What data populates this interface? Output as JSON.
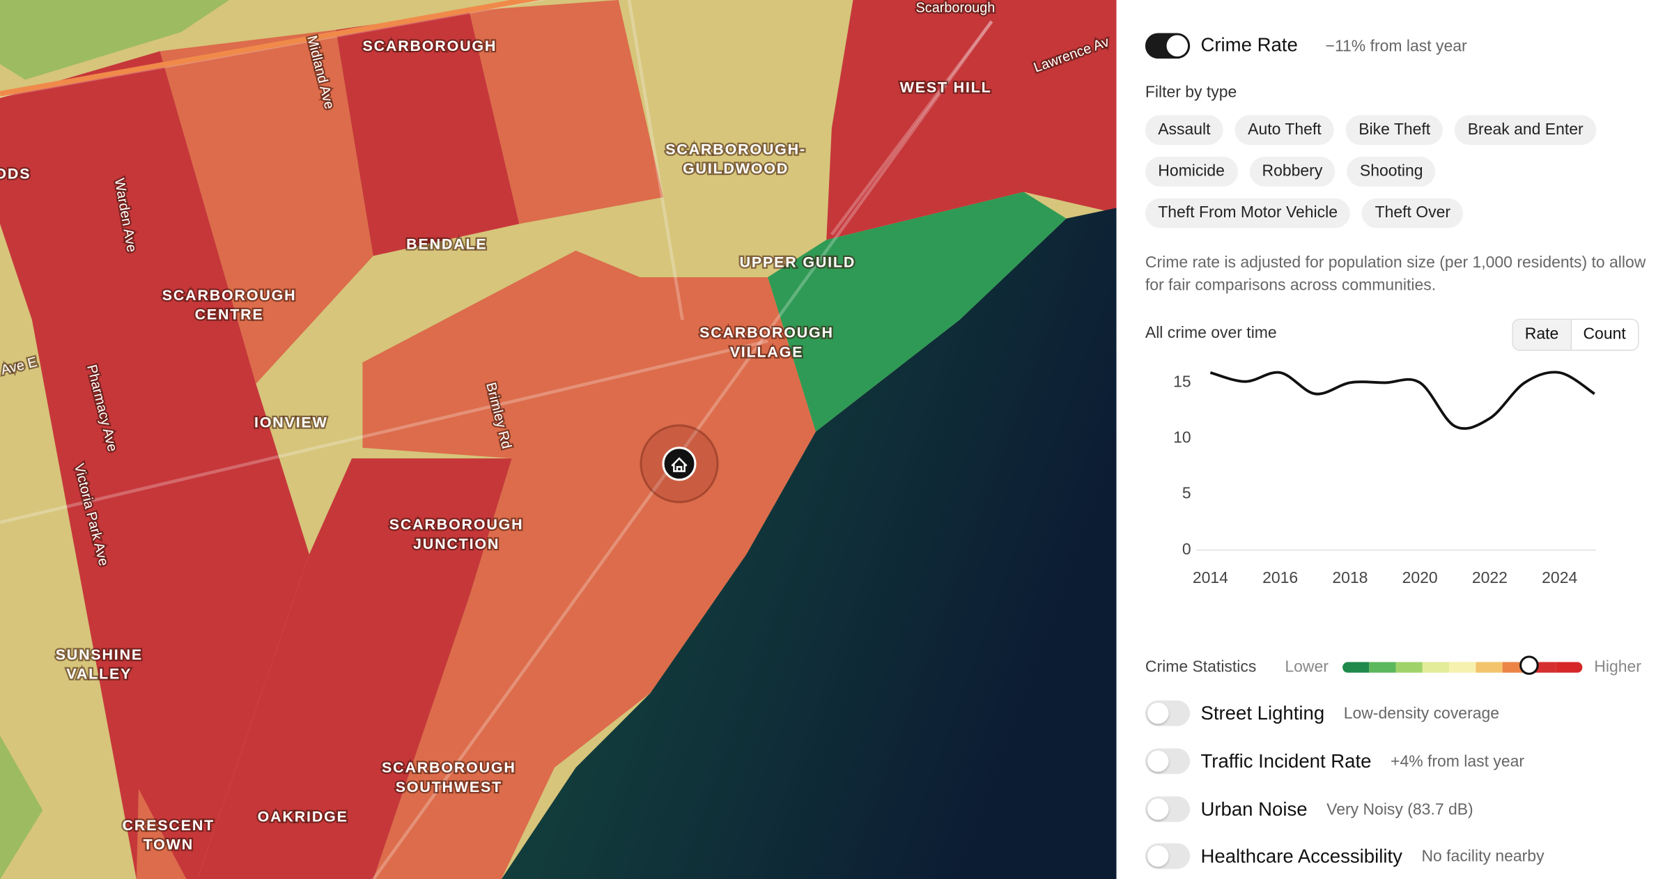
{
  "map": {
    "area_labels": [
      [
        "SCARBOROUGH"
      ],
      [
        "WEST HILL"
      ],
      [
        "SCARBOROUGH-",
        "GUILDWOOD"
      ],
      [
        "BENDALE"
      ],
      [
        "UPPER GUILD"
      ],
      [
        "SCARBOROUGH",
        "CENTRE"
      ],
      [
        "SCARBOROUGH",
        "VILLAGE"
      ],
      [
        "IONVIEW"
      ],
      [
        "SCARBOROUGH",
        "JUNCTION"
      ],
      [
        "SUNSHINE",
        "VALLEY"
      ],
      [
        "SCARBOROUGH",
        "SOUTHWEST"
      ],
      [
        "OAKRIDGE"
      ],
      [
        "CRESCENT",
        "TOWN"
      ],
      [
        "ODS"
      ]
    ],
    "street_labels": [
      "Scarborough",
      "Lawrence Av",
      "Midland Ave",
      "Warden Ave",
      "Pharmacy Ave",
      "Brimley Rd",
      "Victoria Park Ave",
      "Ave E"
    ]
  },
  "panel": {
    "crime_rate": {
      "label": "Crime Rate",
      "change": "−11% from last year"
    },
    "filter_label": "Filter by type",
    "filters": [
      "Assault",
      "Auto Theft",
      "Bike Theft",
      "Break and Enter",
      "Homicide",
      "Robbery",
      "Shooting",
      "Theft From Motor Vehicle",
      "Theft Over"
    ],
    "note": "Crime rate is adjusted for population size (per 1,000 residents) to allow for fair comparisons across communities.",
    "chart_toggles": [
      "Rate",
      "Count"
    ],
    "legend": {
      "title": "Crime Statistics",
      "low": "Lower",
      "high": "Higher"
    },
    "layers": [
      {
        "name": "Street Lighting",
        "detail": "Low-density coverage"
      },
      {
        "name": "Traffic Incident Rate",
        "detail": "+4% from last year"
      },
      {
        "name": "Urban Noise",
        "detail": "Very Noisy (83.7 dB)"
      },
      {
        "name": "Healthcare Accessibility",
        "detail": "No facility nearby"
      }
    ]
  },
  "chart_data": {
    "type": "line",
    "title": "All crime over time",
    "x": [
      2014,
      2015,
      2016,
      2017,
      2018,
      2019,
      2020,
      2021,
      2022,
      2023,
      2024,
      2025
    ],
    "series": [
      {
        "name": "All crime",
        "color": "#111111",
        "values": [
          15.9,
          15.1,
          15.9,
          14.0,
          15.0,
          15.0,
          15.0,
          11.1,
          11.8,
          15.0,
          15.9,
          14.0
        ]
      }
    ],
    "xlim": [
      2013.6,
      2025.05
    ],
    "xticks": [
      2014,
      2016,
      2018,
      2020,
      2022,
      2024
    ],
    "ylim": [
      0,
      17
    ],
    "yticks": [
      0,
      5,
      10,
      15
    ],
    "grid": false
  }
}
